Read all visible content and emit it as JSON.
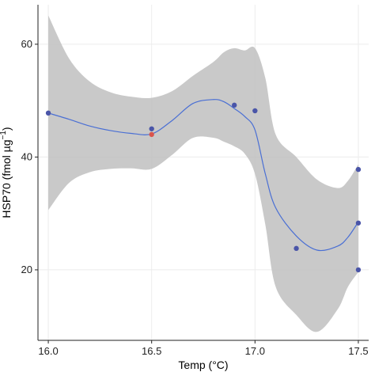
{
  "chart_data": {
    "type": "scatter",
    "title": "",
    "xlabel": "Temp (°C)",
    "ylabel_main": "HSP70 (fmol µg",
    "ylabel_sup": "−1",
    "ylabel_close": ")",
    "xlim": [
      15.95,
      17.55
    ],
    "ylim": [
      7.5,
      67
    ],
    "x_ticks": [
      16.0,
      16.5,
      17.0,
      17.5
    ],
    "x_tick_labels": [
      "16.0",
      "16.5",
      "17.0",
      "17.5"
    ],
    "y_ticks": [
      20,
      40,
      60
    ],
    "y_tick_labels": [
      "20",
      "40",
      "60"
    ],
    "grid": true,
    "points": [
      {
        "x": 16.0,
        "y": 47.8,
        "color": "#4a55a8"
      },
      {
        "x": 16.5,
        "y": 45.0,
        "color": "#4a55a8"
      },
      {
        "x": 16.5,
        "y": 44.0,
        "color": "#d9544d"
      },
      {
        "x": 16.9,
        "y": 49.2,
        "color": "#4a55a8"
      },
      {
        "x": 17.0,
        "y": 48.2,
        "color": "#4a55a8"
      },
      {
        "x": 17.2,
        "y": 23.8,
        "color": "#4a55a8"
      },
      {
        "x": 17.5,
        "y": 37.8,
        "color": "#4a55a8"
      },
      {
        "x": 17.5,
        "y": 28.3,
        "color": "#4a55a8"
      },
      {
        "x": 17.5,
        "y": 20.0,
        "color": "#4a55a8"
      }
    ],
    "smooth": {
      "x": [
        16.0,
        16.1,
        16.2,
        16.3,
        16.4,
        16.5,
        16.6,
        16.7,
        16.8,
        16.85,
        16.9,
        16.95,
        17.0,
        17.05,
        17.1,
        17.2,
        17.3,
        17.4,
        17.45,
        17.5
      ],
      "y": [
        47.8,
        46.7,
        45.5,
        44.7,
        44.2,
        44.1,
        46.5,
        49.5,
        50.2,
        49.8,
        48.6,
        47.2,
        44.8,
        37.0,
        31.0,
        26.0,
        23.5,
        24.2,
        25.8,
        28.5
      ],
      "lower": [
        30.6,
        35.4,
        37.3,
        37.9,
        38.0,
        37.9,
        40.4,
        43.4,
        43.4,
        42.7,
        41.9,
        40.6,
        37.0,
        28.0,
        17.0,
        12.0,
        9.0,
        13.0,
        17.0,
        19.6
      ],
      "upper": [
        65.1,
        57.5,
        53.4,
        51.5,
        50.7,
        50.5,
        51.7,
        54.4,
        56.9,
        58.6,
        59.3,
        58.9,
        59.3,
        54.0,
        44.0,
        40.0,
        36.0,
        34.5,
        35.8,
        38.7
      ],
      "line_color": "#4a6fd4",
      "band_color": "#bfbfbf"
    }
  }
}
